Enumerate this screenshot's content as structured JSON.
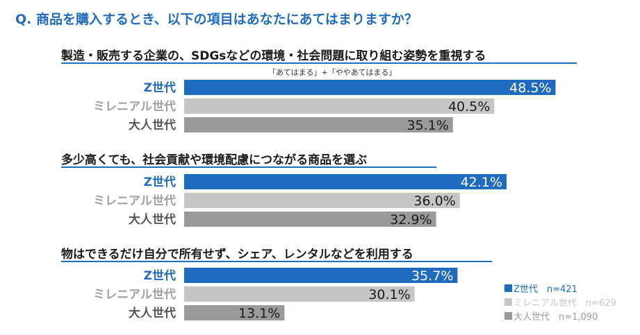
{
  "question": "Q. 商品を購入するとき、以下の項目はあなたにあてはまりますか？",
  "note": "「あてはまる」+「ややあてはまる」",
  "colors": {
    "gen_z": "#1e6bbf",
    "millennial": "#c6c6c6",
    "adult": "#9a9a9a",
    "accent": "#1e6bbf"
  },
  "legend": [
    {
      "label": "Z世代　n=421",
      "color": "#1e6bbf"
    },
    {
      "label": "ミレニアル世代　n=629",
      "color": "#c6c6c6"
    },
    {
      "label": "大人世代　n=1,090",
      "color": "#9a9a9a"
    }
  ],
  "chart_data": {
    "type": "bar",
    "orientation": "horizontal",
    "unit": "%",
    "categories": [
      "Z世代",
      "ミレニアル世代",
      "大人世代"
    ],
    "groups": [
      {
        "title": "製造・販売する企業の、SDGsなどの環境・社会問題に取り組む姿勢を重視する",
        "values": [
          48.5,
          40.5,
          35.1
        ],
        "labels": [
          "48.5%",
          "40.5%",
          "35.1%"
        ]
      },
      {
        "title": "多少高くても、社会貢献や環境配慮につながる商品を選ぶ",
        "values": [
          42.1,
          36.0,
          32.9
        ],
        "labels": [
          "42.1%",
          "36.0%",
          "32.9%"
        ]
      },
      {
        "title": "物はできるだけ自分で所有せず、シェア、レンタルなどを利用する",
        "values": [
          35.7,
          30.1,
          13.1
        ],
        "labels": [
          "35.7%",
          "30.1%",
          "13.1%"
        ]
      }
    ]
  }
}
